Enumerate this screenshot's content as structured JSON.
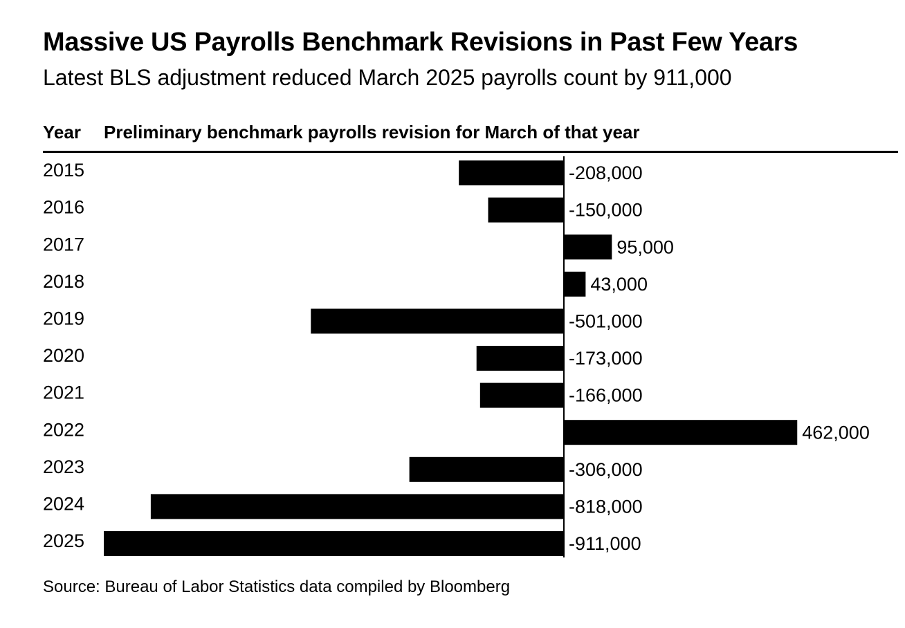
{
  "title": "Massive US Payrolls Benchmark Revisions in Past Few Years",
  "subtitle": "Latest BLS adjustment reduced March 2025 payrolls count by 911,000",
  "columns": {
    "year_header": "Year",
    "value_header": "Preliminary benchmark payrolls revision for March of that year"
  },
  "source": "Source: Bureau of Labor Statistics data compiled by Bloomberg",
  "colors": {
    "bar": "#000000",
    "text": "#000000",
    "background": "#ffffff"
  },
  "chart_data": {
    "type": "bar",
    "orientation": "horizontal",
    "title": "Massive US Payrolls Benchmark Revisions in Past Few Years",
    "subtitle": "Latest BLS adjustment reduced March 2025 payrolls count by 911,000",
    "xlabel": "Preliminary benchmark payrolls revision for March of that year",
    "ylabel": "Year",
    "categories": [
      "2015",
      "2016",
      "2017",
      "2018",
      "2019",
      "2020",
      "2021",
      "2022",
      "2023",
      "2024",
      "2025"
    ],
    "values": [
      -208000,
      -150000,
      95000,
      43000,
      -501000,
      -173000,
      -166000,
      462000,
      -306000,
      -818000,
      -911000
    ],
    "value_labels": [
      "-208,000",
      "-150,000",
      "95,000",
      "43,000",
      "-501,000",
      "-173,000",
      "-166,000",
      "462,000",
      "-306,000",
      "-818,000",
      "-911,000"
    ],
    "xlim": [
      -911000,
      462000
    ],
    "grid": false,
    "legend": "none"
  }
}
